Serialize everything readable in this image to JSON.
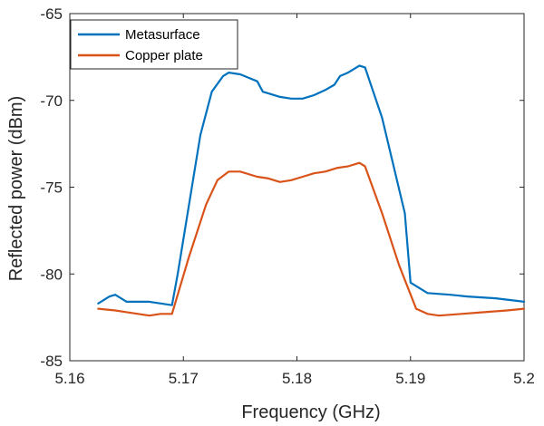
{
  "chart_data": {
    "type": "line",
    "title": "",
    "xlabel": "Frequency (GHz)",
    "ylabel": "Reflected power (dBm)",
    "xlim": [
      5.16,
      5.2
    ],
    "ylim": [
      -85,
      -65
    ],
    "xticks": [
      5.16,
      5.17,
      5.18,
      5.19,
      5.2
    ],
    "xtick_labels": [
      "5.16",
      "5.17",
      "5.18",
      "5.19",
      "5.2"
    ],
    "yticks": [
      -85,
      -80,
      -75,
      -70,
      -65
    ],
    "ytick_labels": [
      "-85",
      "-80",
      "-75",
      "-70",
      "-65"
    ],
    "grid": false,
    "legend_position": "top-left",
    "series": [
      {
        "name": "Metasurface",
        "color": "#0072BD",
        "x": [
          5.1625,
          5.1635,
          5.164,
          5.165,
          5.166,
          5.167,
          5.168,
          5.169,
          5.1695,
          5.1705,
          5.1715,
          5.1725,
          5.1735,
          5.174,
          5.175,
          5.1765,
          5.177,
          5.1775,
          5.1785,
          5.1795,
          5.1805,
          5.1815,
          5.1825,
          5.1833,
          5.1838,
          5.1845,
          5.185,
          5.1855,
          5.186,
          5.1875,
          5.1895,
          5.19,
          5.1915,
          5.1935,
          5.195,
          5.1975,
          5.2
        ],
        "y": [
          -81.7,
          -81.3,
          -81.2,
          -81.6,
          -81.6,
          -81.6,
          -81.7,
          -81.8,
          -80.0,
          -76.0,
          -72.0,
          -69.5,
          -68.6,
          -68.4,
          -68.5,
          -68.9,
          -69.5,
          -69.6,
          -69.8,
          -69.9,
          -69.9,
          -69.7,
          -69.4,
          -69.1,
          -68.6,
          -68.4,
          -68.2,
          -68.0,
          -68.1,
          -71.0,
          -76.5,
          -80.5,
          -81.1,
          -81.2,
          -81.3,
          -81.4,
          -81.6
        ]
      },
      {
        "name": "Copper plate",
        "color": "#D95319",
        "x": [
          5.1625,
          5.164,
          5.165,
          5.166,
          5.167,
          5.168,
          5.169,
          5.1705,
          5.172,
          5.173,
          5.174,
          5.175,
          5.1765,
          5.1775,
          5.1785,
          5.1795,
          5.1805,
          5.1815,
          5.1825,
          5.1835,
          5.1845,
          5.1855,
          5.186,
          5.1875,
          5.189,
          5.1905,
          5.1915,
          5.1925,
          5.1945,
          5.1965,
          5.1985,
          5.2
        ],
        "y": [
          -82.0,
          -82.1,
          -82.2,
          -82.3,
          -82.4,
          -82.3,
          -82.3,
          -79.0,
          -76.0,
          -74.6,
          -74.1,
          -74.1,
          -74.4,
          -74.5,
          -74.7,
          -74.6,
          -74.4,
          -74.2,
          -74.1,
          -73.9,
          -73.8,
          -73.6,
          -73.8,
          -76.5,
          -79.5,
          -82.0,
          -82.3,
          -82.4,
          -82.3,
          -82.2,
          -82.1,
          -82.0
        ]
      }
    ]
  }
}
